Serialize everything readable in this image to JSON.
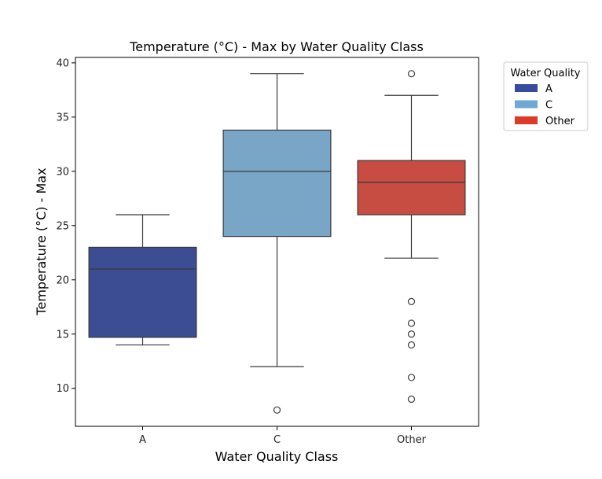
{
  "chart_data": {
    "type": "box",
    "title": "Temperature (°C) - Max by Water Quality Class",
    "xlabel": "Water Quality Class",
    "ylabel": "Temperature (°C) - Max",
    "ylim": [
      6.5,
      40.5
    ],
    "yticks": [
      10,
      15,
      20,
      25,
      30,
      35,
      40
    ],
    "categories": [
      "A",
      "C",
      "Other"
    ],
    "boxes": [
      {
        "category": "A",
        "whisker_low": 14,
        "q1": 14.7,
        "median": 21,
        "q3": 23,
        "whisker_high": 26,
        "outliers": [],
        "color": "#3d4d93"
      },
      {
        "category": "C",
        "whisker_low": 12,
        "q1": 24,
        "median": 30,
        "q3": 33.8,
        "whisker_high": 39,
        "outliers": [
          8
        ],
        "color": "#79a5c7"
      },
      {
        "category": "Other",
        "whisker_low": 22,
        "q1": 26,
        "median": 29,
        "q3": 31,
        "whisker_high": 37,
        "outliers": [
          39,
          18,
          16,
          15,
          14,
          11,
          9
        ],
        "color": "#c74c42"
      }
    ],
    "legend": {
      "title": "Water Quality",
      "placement": "outside-top-right",
      "entries": [
        {
          "label": "A",
          "color": "#3a4a9e"
        },
        {
          "label": "C",
          "color": "#6fa8d6"
        },
        {
          "label": "Other",
          "color": "#dd3a2a"
        }
      ]
    }
  }
}
